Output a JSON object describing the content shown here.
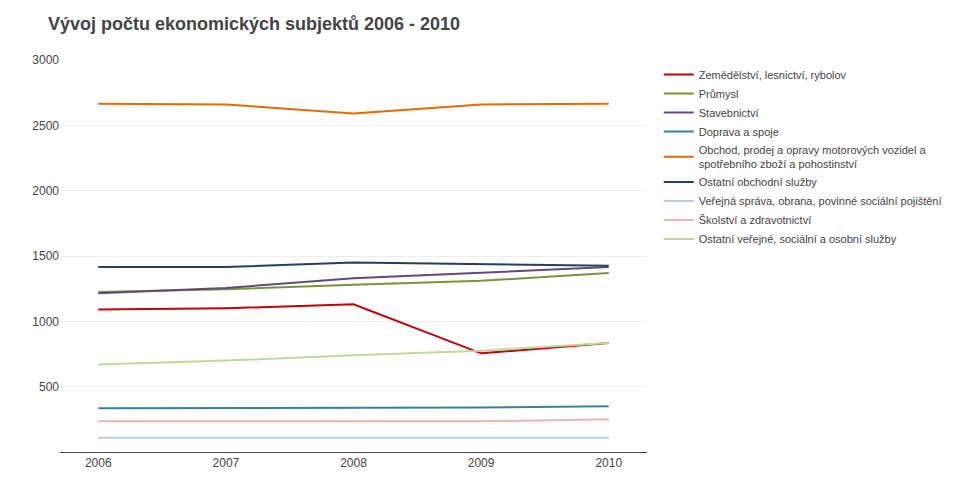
{
  "chart_data": {
    "type": "line",
    "title": "Vývoj počtu ekonomických subjektů 2006 - 2010",
    "x": [
      2006,
      2007,
      2008,
      2009,
      2010
    ],
    "series": [
      {
        "name": "Zemědělství, lesnictví, rybolov",
        "color": "#C0000C",
        "values": [
          1090,
          1100,
          1130,
          755,
          835
        ]
      },
      {
        "name": "Průmysl",
        "color": "#77933C",
        "values": [
          1225,
          1245,
          1280,
          1310,
          1370
        ]
      },
      {
        "name": "Stavebnictví",
        "color": "#604A7B",
        "values": [
          1215,
          1255,
          1330,
          1370,
          1415
        ]
      },
      {
        "name": "Doprava a spoje",
        "color": "#31849B",
        "values": [
          335,
          335,
          335,
          340,
          350
        ]
      },
      {
        "name": "Obchod, prodej a opravy motorových vozidel a\nspotřebního zboží a pohostinství",
        "color": "#E26B0A",
        "values": [
          2665,
          2660,
          2590,
          2660,
          2665
        ]
      },
      {
        "name": "Ostatní obchodní služby",
        "color": "#243F60",
        "values": [
          1415,
          1415,
          1450,
          1440,
          1425
        ]
      },
      {
        "name": "Veřejná správa, obrana, povinné sociální pojištění",
        "color": "#B8CCE4",
        "values": [
          110,
          110,
          110,
          110,
          110
        ]
      },
      {
        "name": "Školství a zdravotnictví",
        "color": "#E6B8B7",
        "values": [
          235,
          235,
          235,
          235,
          250
        ]
      },
      {
        "name": "Ostatní veřejné, sociální a osobní služby",
        "color": "#C4D79B",
        "values": [
          670,
          700,
          740,
          775,
          835
        ]
      }
    ],
    "xlim": [
      2005.7,
      2010.3
    ],
    "xticks": [
      2006,
      2007,
      2008,
      2009,
      2010
    ],
    "ylim": [
      0,
      3000
    ],
    "yticks": [
      500,
      1000,
      1500,
      2000,
      2500,
      3000
    ],
    "grid": "y",
    "legend": "right"
  }
}
